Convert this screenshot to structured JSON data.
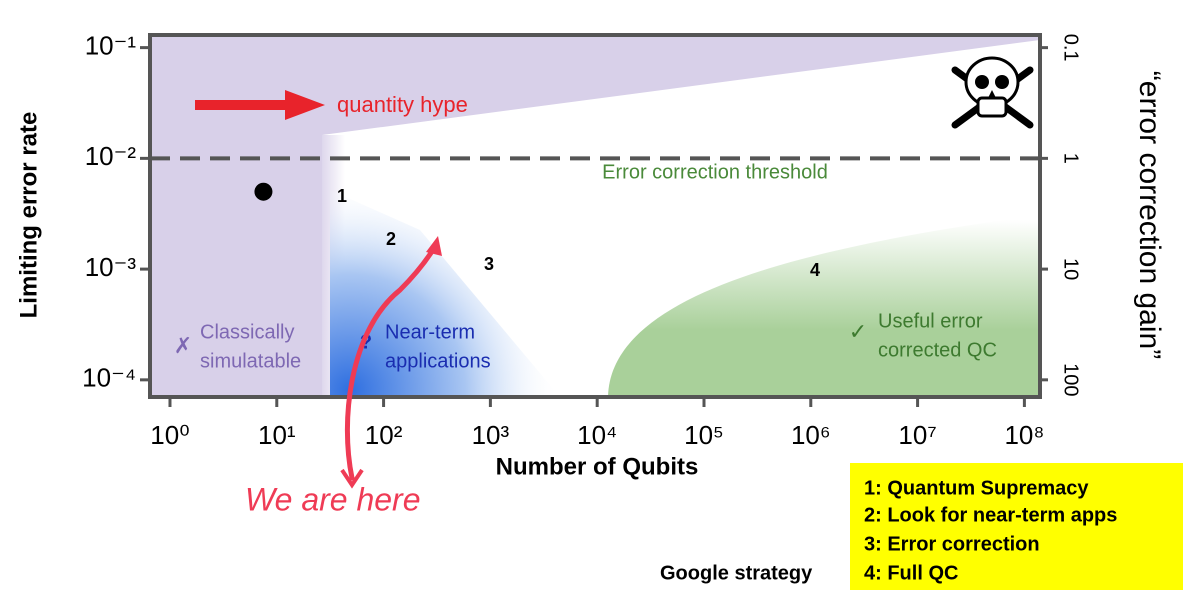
{
  "chart_data": {
    "type": "scatter",
    "x_label": "Number of Qubits",
    "y_label": "Limiting error rate",
    "y2_label": "“error correction gain”",
    "xscale": "log",
    "yscale": "log",
    "xlim": [
      0.65,
      140000000
    ],
    "ylim": [
      7e-05,
      0.13
    ],
    "y2lim": [
      142.9,
      0.0769
    ],
    "xticks": [
      {
        "value": 1,
        "label": "10⁰"
      },
      {
        "value": 10,
        "label": "10¹"
      },
      {
        "value": 100,
        "label": "10²"
      },
      {
        "value": 1000,
        "label": "10³"
      },
      {
        "value": 10000,
        "label": "10⁴"
      },
      {
        "value": 100000,
        "label": "10⁵"
      },
      {
        "value": 1000000,
        "label": "10⁶"
      },
      {
        "value": 10000000,
        "label": "10⁷"
      },
      {
        "value": 100000000,
        "label": "10⁸"
      }
    ],
    "yticks": [
      {
        "value": 0.1,
        "label": "10⁻¹"
      },
      {
        "value": 0.01,
        "label": "10⁻²"
      },
      {
        "value": 0.001,
        "label": "10⁻³"
      },
      {
        "value": 0.0001,
        "label": "10⁻⁴"
      }
    ],
    "y2ticks": [
      0.1,
      1,
      10,
      100
    ],
    "series": [
      {
        "x": [
          7.5
        ],
        "values": [
          0.005
        ],
        "color": "#000000"
      }
    ],
    "threshold": {
      "value": 0.01,
      "label": "Error correction threshold",
      "color": "#4a8a3a"
    },
    "annotations": {
      "quantity_hype": "quantity hype",
      "we_are_here": "We are here",
      "milestones": [
        "1",
        "2",
        "3",
        "4"
      ],
      "classical": {
        "mark": "✗",
        "lines": [
          "Classically",
          "simulatable"
        ]
      },
      "near_term": {
        "mark": "?",
        "lines": [
          "Near-term",
          "applications"
        ]
      },
      "useful": {
        "mark": "✓",
        "lines": [
          "Useful error",
          "corrected QC"
        ]
      }
    },
    "strategy": {
      "title": "Google strategy",
      "items": [
        "1: Quantum Supremacy",
        "2: Look for near-term apps",
        "3: Error correction",
        "4: Full QC"
      ]
    }
  }
}
